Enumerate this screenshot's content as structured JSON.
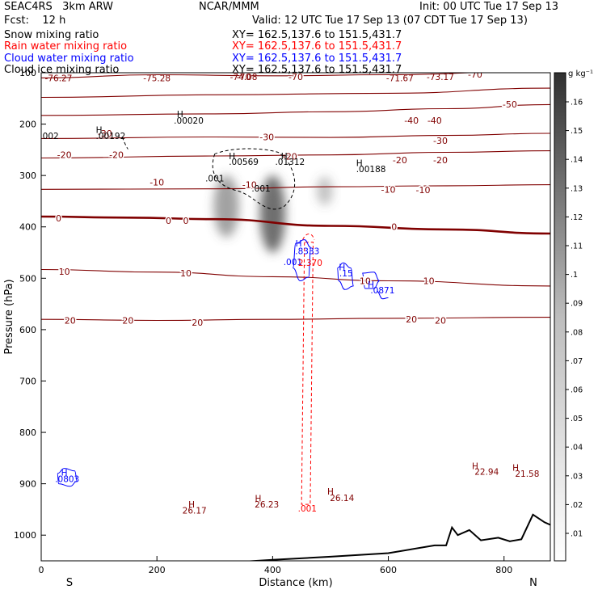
{
  "header": {
    "model": "SEAC4RS   3km ARW",
    "fcst": "Fcst:    12 h",
    "center": "NCAR/MMM",
    "init": "Init: 00 UTC Tue 17 Sep 13",
    "valid": "Valid: 12 UTC Tue 17 Sep 13 (07 CDT Tue 17 Sep 13)",
    "fields": [
      {
        "name": "Snow mixing ratio",
        "xy": "XY= 162.5,137.6 to 151.5,431.7",
        "color": "#000000"
      },
      {
        "name": "Rain water mixing ratio",
        "xy": "XY= 162.5,137.6 to 151.5,431.7",
        "color": "#ff0000"
      },
      {
        "name": "Cloud water mixing ratio",
        "xy": "XY= 162.5,137.6 to 151.5,431.7",
        "color": "#0000ff"
      },
      {
        "name": "Cloud ice mixing ratio",
        "xy": "XY= 162.5,137.6 to 151.5,431.7",
        "color": "#000000"
      }
    ]
  },
  "chart_data": {
    "type": "contour",
    "xlabel": "Distance (km)",
    "ylabel": "Pressure (hPa)",
    "xlim": [
      0,
      880
    ],
    "ylim": [
      1050,
      100
    ],
    "x_ticks": [
      0,
      200,
      400,
      600,
      800
    ],
    "y_ticks": [
      100,
      200,
      300,
      400,
      500,
      600,
      700,
      800,
      900,
      1000
    ],
    "x_end_labels": {
      "left": "S",
      "right": "N"
    },
    "colorbar": {
      "unit": "g kg⁻¹",
      "ticks": [
        ".01",
        ".02",
        ".03",
        ".04",
        ".05",
        ".06",
        ".07",
        ".08",
        ".09",
        ".1",
        ".11",
        ".12",
        ".13",
        ".14",
        ".15",
        ".16"
      ]
    },
    "temperature_contours": [
      {
        "label": "-70",
        "points": [
          [
            0,
            110
          ],
          [
            200,
            104
          ],
          [
            400,
            106
          ],
          [
            600,
            104
          ],
          [
            880,
            96
          ]
        ]
      },
      {
        "label": "-50",
        "points": [
          [
            0,
            148
          ],
          [
            300,
            143
          ],
          [
            600,
            140
          ],
          [
            880,
            130
          ]
        ]
      },
      {
        "label": "-40",
        "points": [
          [
            0,
            183
          ],
          [
            300,
            180
          ],
          [
            500,
            176
          ],
          [
            700,
            170
          ],
          [
            880,
            162
          ]
        ]
      },
      {
        "label": "-30",
        "points": [
          [
            0,
            228
          ],
          [
            300,
            225
          ],
          [
            500,
            226
          ],
          [
            700,
            222
          ],
          [
            880,
            218
          ]
        ]
      },
      {
        "label": "-20",
        "points": [
          [
            0,
            266
          ],
          [
            300,
            262
          ],
          [
            500,
            260
          ],
          [
            700,
            255
          ],
          [
            880,
            252
          ]
        ]
      },
      {
        "label": "-10",
        "points": [
          [
            0,
            327
          ],
          [
            300,
            326
          ],
          [
            500,
            322
          ],
          [
            700,
            320
          ],
          [
            880,
            318
          ]
        ]
      },
      {
        "label": "0",
        "points": [
          [
            0,
            380
          ],
          [
            150,
            382
          ],
          [
            300,
            385
          ],
          [
            500,
            398
          ],
          [
            700,
            405
          ],
          [
            880,
            413
          ]
        ]
      },
      {
        "label": "10",
        "points": [
          [
            0,
            483
          ],
          [
            200,
            488
          ],
          [
            400,
            497
          ],
          [
            600,
            505
          ],
          [
            880,
            515
          ]
        ]
      },
      {
        "label": "20",
        "points": [
          [
            0,
            580
          ],
          [
            200,
            582
          ],
          [
            400,
            580
          ],
          [
            600,
            578
          ],
          [
            880,
            576
          ]
        ]
      }
    ],
    "contour_labels": [
      {
        "text": "-70",
        "x": 350,
        "p": 108
      },
      {
        "text": "-70",
        "x": 440,
        "p": 108
      },
      {
        "text": "-70",
        "x": 750,
        "p": 103
      },
      {
        "text": "-50",
        "x": 810,
        "p": 161
      },
      {
        "text": "-40",
        "x": 640,
        "p": 193
      },
      {
        "text": "-40",
        "x": 680,
        "p": 193
      },
      {
        "text": "-30",
        "x": 110,
        "p": 218
      },
      {
        "text": "-30",
        "x": 390,
        "p": 225
      },
      {
        "text": "-30",
        "x": 690,
        "p": 232
      },
      {
        "text": "-20",
        "x": 40,
        "p": 260
      },
      {
        "text": "-20",
        "x": 130,
        "p": 260
      },
      {
        "text": "-20",
        "x": 430,
        "p": 263
      },
      {
        "text": "-20",
        "x": 620,
        "p": 270
      },
      {
        "text": "-20",
        "x": 690,
        "p": 270
      },
      {
        "text": "-10",
        "x": 200,
        "p": 313
      },
      {
        "text": "-10",
        "x": 360,
        "p": 318
      },
      {
        "text": "-10",
        "x": 600,
        "p": 327
      },
      {
        "text": "-10",
        "x": 660,
        "p": 328
      },
      {
        "text": "0",
        "x": 30,
        "p": 383
      },
      {
        "text": "0",
        "x": 220,
        "p": 388
      },
      {
        "text": "0",
        "x": 250,
        "p": 388
      },
      {
        "text": "0",
        "x": 610,
        "p": 400
      },
      {
        "text": "10",
        "x": 40,
        "p": 487
      },
      {
        "text": "10",
        "x": 250,
        "p": 490
      },
      {
        "text": "10",
        "x": 560,
        "p": 505
      },
      {
        "text": "10",
        "x": 670,
        "p": 505
      },
      {
        "text": "20",
        "x": 50,
        "p": 582
      },
      {
        "text": "20",
        "x": 150,
        "p": 582
      },
      {
        "text": "20",
        "x": 270,
        "p": 586
      },
      {
        "text": "20",
        "x": 640,
        "p": 580
      },
      {
        "text": "20",
        "x": 690,
        "p": 582
      }
    ],
    "value_labels": [
      {
        "text": "-76.27",
        "x": 30,
        "p": 110,
        "color": "#800000"
      },
      {
        "text": "-75.28",
        "x": 200,
        "p": 110,
        "color": "#800000"
      },
      {
        "text": "-74.08",
        "x": 350,
        "p": 108,
        "color": "#800000"
      },
      {
        "text": "-71.67",
        "x": 620,
        "p": 110,
        "color": "#800000"
      },
      {
        "text": "-73.17",
        "x": 690,
        "p": 108,
        "color": "#800000"
      },
      {
        "text": "H",
        "x": 240,
        "p": 180,
        "color": "#000000"
      },
      {
        "text": ".00020",
        "x": 255,
        "p": 193,
        "color": "#000000"
      },
      {
        "text": "H",
        "x": 100,
        "p": 211,
        "color": "#000000"
      },
      {
        "text": ".00192",
        "x": 120,
        "p": 223,
        "color": "#000000"
      },
      {
        "text": ".002",
        "x": 14,
        "p": 223,
        "color": "#000000"
      },
      {
        "text": "H",
        "x": 330,
        "p": 262,
        "color": "#000000"
      },
      {
        "text": ".00569",
        "x": 350,
        "p": 273,
        "color": "#000000"
      },
      {
        "text": "H",
        "x": 420,
        "p": 262,
        "color": "#000000"
      },
      {
        "text": ".01312",
        "x": 430,
        "p": 273,
        "color": "#000000"
      },
      {
        "text": "H",
        "x": 550,
        "p": 275,
        "color": "#000000"
      },
      {
        "text": ".00188",
        "x": 570,
        "p": 287,
        "color": "#000000"
      },
      {
        "text": ".001",
        "x": 300,
        "p": 305,
        "color": "#000000"
      },
      {
        "text": ".001",
        "x": 380,
        "p": 325,
        "color": "#000000"
      },
      {
        "text": "H",
        "x": 445,
        "p": 432,
        "color": "#0000ff"
      },
      {
        "text": ".8333",
        "x": 460,
        "p": 447,
        "color": "#0000ff"
      },
      {
        "text": ".001",
        "x": 435,
        "p": 468,
        "color": "#0000ff"
      },
      {
        "text": "2.370",
        "x": 465,
        "p": 470,
        "color": "#ff0000"
      },
      {
        "text": "H",
        "x": 520,
        "p": 478,
        "color": "#0000ff"
      },
      {
        "text": ".15",
        "x": 527,
        "p": 490,
        "color": "#0000ff"
      },
      {
        "text": "H",
        "x": 570,
        "p": 512,
        "color": "#0000ff"
      },
      {
        "text": ".0871",
        "x": 590,
        "p": 523,
        "color": "#0000ff"
      },
      {
        "text": "H",
        "x": 40,
        "p": 878,
        "color": "#0000ff"
      },
      {
        "text": ".0803",
        "x": 45,
        "p": 890,
        "color": "#0000ff"
      },
      {
        "text": "H",
        "x": 750,
        "p": 865,
        "color": "#800000"
      },
      {
        "text": "22.94",
        "x": 770,
        "p": 876,
        "color": "#800000"
      },
      {
        "text": "H",
        "x": 820,
        "p": 868,
        "color": "#800000"
      },
      {
        "text": "21.58",
        "x": 840,
        "p": 880,
        "color": "#800000"
      },
      {
        "text": "H",
        "x": 500,
        "p": 915,
        "color": "#800000"
      },
      {
        "text": "26.14",
        "x": 520,
        "p": 927,
        "color": "#800000"
      },
      {
        "text": "H",
        "x": 375,
        "p": 928,
        "color": "#800000"
      },
      {
        "text": "26.23",
        "x": 390,
        "p": 940,
        "color": "#800000"
      },
      {
        "text": "H",
        "x": 260,
        "p": 940,
        "color": "#800000"
      },
      {
        "text": "26.17",
        "x": 265,
        "p": 952,
        "color": "#800000"
      },
      {
        "text": ".001",
        "x": 460,
        "p": 948,
        "color": "#ff0000"
      }
    ],
    "terrain": [
      [
        0,
        1060
      ],
      [
        200,
        1060
      ],
      [
        300,
        1055
      ],
      [
        400,
        1048
      ],
      [
        500,
        1042
      ],
      [
        600,
        1035
      ],
      [
        680,
        1020
      ],
      [
        700,
        1020
      ],
      [
        710,
        985
      ],
      [
        720,
        1000
      ],
      [
        740,
        990
      ],
      [
        760,
        1010
      ],
      [
        790,
        1005
      ],
      [
        810,
        1012
      ],
      [
        830,
        1008
      ],
      [
        850,
        960
      ],
      [
        870,
        975
      ],
      [
        880,
        980
      ]
    ],
    "snow_shading": [
      {
        "x": 320,
        "p": 360,
        "rx": 22,
        "rp": 60,
        "opacity": 0.55
      },
      {
        "x": 400,
        "p": 375,
        "rx": 22,
        "rp": 75,
        "opacity": 0.85
      },
      {
        "x": 490,
        "p": 330,
        "rx": 14,
        "rp": 28,
        "opacity": 0.35
      }
    ]
  }
}
